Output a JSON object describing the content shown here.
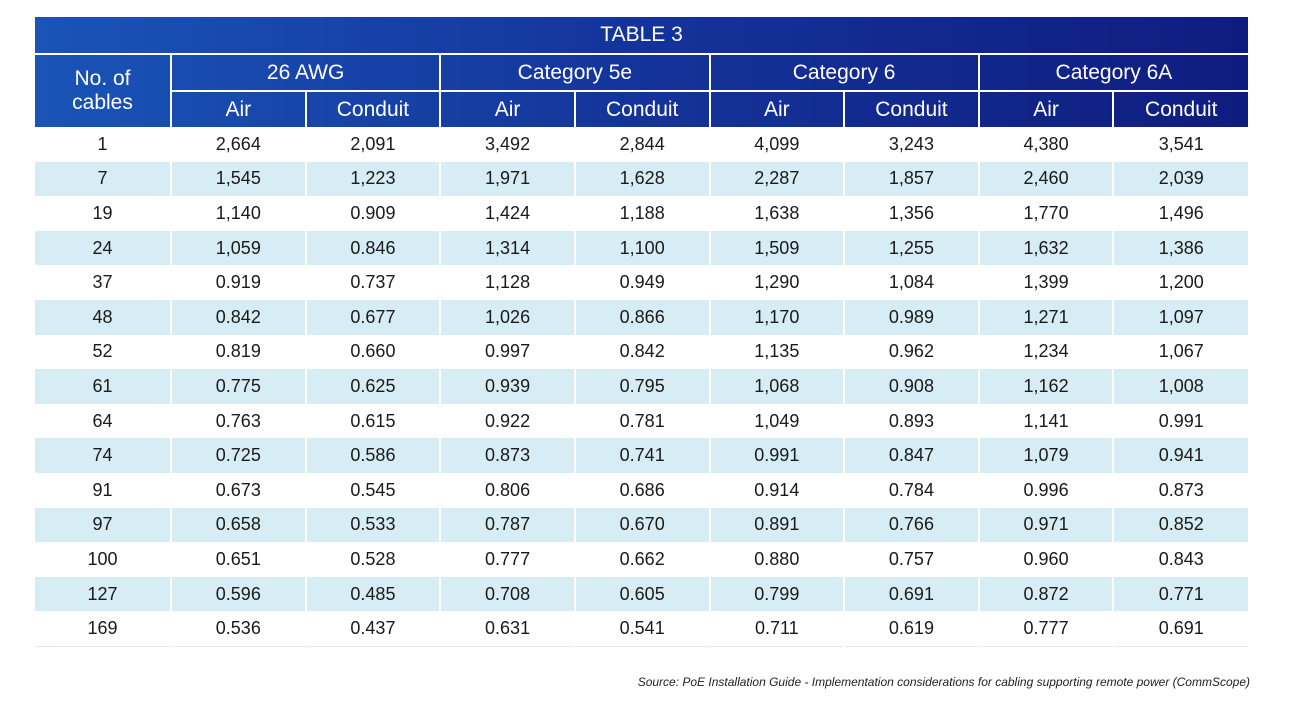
{
  "title": "TABLE 3",
  "row_header": [
    "No. of",
    "cables"
  ],
  "groups": [
    "26 AWG",
    "Category 5e",
    "Category 6",
    "Category 6A"
  ],
  "subheaders": [
    "Air",
    "Conduit"
  ],
  "rows": [
    [
      "1",
      "2,664",
      "2,091",
      "3,492",
      "2,844",
      "4,099",
      "3,243",
      "4,380",
      "3,541"
    ],
    [
      "7",
      "1,545",
      "1,223",
      "1,971",
      "1,628",
      "2,287",
      "1,857",
      "2,460",
      "2,039"
    ],
    [
      "19",
      "1,140",
      "0.909",
      "1,424",
      "1,188",
      "1,638",
      "1,356",
      "1,770",
      "1,496"
    ],
    [
      "24",
      "1,059",
      "0.846",
      "1,314",
      "1,100",
      "1,509",
      "1,255",
      "1,632",
      "1,386"
    ],
    [
      "37",
      "0.919",
      "0.737",
      "1,128",
      "0.949",
      "1,290",
      "1,084",
      "1,399",
      "1,200"
    ],
    [
      "48",
      "0.842",
      "0.677",
      "1,026",
      "0.866",
      "1,170",
      "0.989",
      "1,271",
      "1,097"
    ],
    [
      "52",
      "0.819",
      "0.660",
      "0.997",
      "0.842",
      "1,135",
      "0.962",
      "1,234",
      "1,067"
    ],
    [
      "61",
      "0.775",
      "0.625",
      "0.939",
      "0.795",
      "1,068",
      "0.908",
      "1,162",
      "1,008"
    ],
    [
      "64",
      "0.763",
      "0.615",
      "0.922",
      "0.781",
      "1,049",
      "0.893",
      "1,141",
      "0.991"
    ],
    [
      "74",
      "0.725",
      "0.586",
      "0.873",
      "0.741",
      "0.991",
      "0.847",
      "1,079",
      "0.941"
    ],
    [
      "91",
      "0.673",
      "0.545",
      "0.806",
      "0.686",
      "0.914",
      "0.784",
      "0.996",
      "0.873"
    ],
    [
      "97",
      "0.658",
      "0.533",
      "0.787",
      "0.670",
      "0.891",
      "0.766",
      "0.971",
      "0.852"
    ],
    [
      "100",
      "0.651",
      "0.528",
      "0.777",
      "0.662",
      "0.880",
      "0.757",
      "0.960",
      "0.843"
    ],
    [
      "127",
      "0.596",
      "0.485",
      "0.708",
      "0.605",
      "0.799",
      "0.691",
      "0.872",
      "0.771"
    ],
    [
      "169",
      "0.536",
      "0.437",
      "0.631",
      "0.541",
      "0.711",
      "0.619",
      "0.777",
      "0.691"
    ]
  ],
  "source": "Source: PoE Installation Guide - Implementation considerations for cabling supporting remote power (CommScope)",
  "colors": {
    "header_start": "#1a56b8",
    "header_end": "#0e1a7c",
    "stripe": "#d6edf5"
  }
}
